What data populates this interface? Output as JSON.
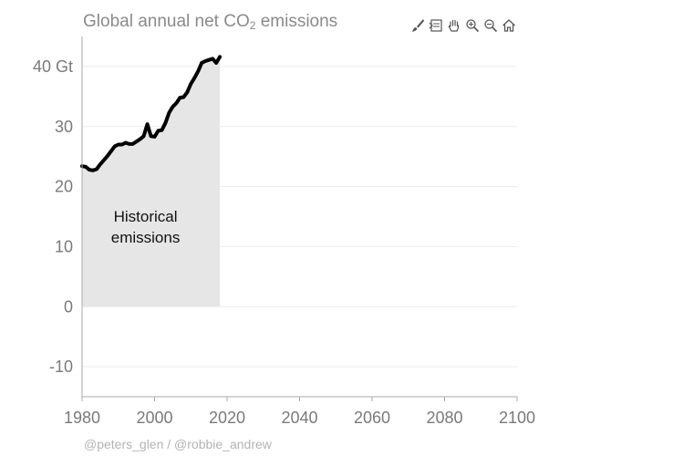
{
  "title": {
    "main": "Global annual net CO",
    "subscript": "2",
    "suffix": " emissions"
  },
  "toolbar": [
    {
      "name": "brush-icon",
      "label": "brush"
    },
    {
      "name": "select-icon",
      "label": "select"
    },
    {
      "name": "pan-icon",
      "label": "pan"
    },
    {
      "name": "zoom-in-icon",
      "label": "zoom in"
    },
    {
      "name": "zoom-out-icon",
      "label": "zoom out"
    },
    {
      "name": "home-icon",
      "label": "home"
    }
  ],
  "credit": "@peters_glen / @robbie_andrew",
  "colors": {
    "line": "#000000",
    "area": "#e6e6e6",
    "grid": "#ececec",
    "text": "#7a7a7a"
  },
  "chart_data": {
    "type": "area",
    "title": "Global annual net CO2 emissions",
    "xlim": [
      1980,
      2100
    ],
    "ylim": [
      -15,
      45
    ],
    "x_ticks": [
      "1980",
      "2000",
      "2020",
      "2040",
      "2060",
      "2080",
      "2100"
    ],
    "y_ticks": [
      {
        "value": 40,
        "label": "40 Gt"
      },
      {
        "value": 30,
        "label": "30"
      },
      {
        "value": 20,
        "label": "20"
      },
      {
        "value": 10,
        "label": "10"
      },
      {
        "value": 0,
        "label": "0"
      },
      {
        "value": -10,
        "label": "-10"
      }
    ],
    "grid": true,
    "annotation": {
      "lines": [
        "Historical",
        "emissions"
      ],
      "x": 1997.5,
      "y": 14.2
    },
    "series": [
      {
        "x": [
          1980,
          1981,
          1982,
          1983,
          1984,
          1985,
          1986,
          1987,
          1988,
          1989,
          1990,
          1991,
          1992,
          1993,
          1994,
          1995,
          1996,
          1997,
          1998,
          1999,
          2000,
          2001,
          2002,
          2003,
          2004,
          2005,
          2006,
          2007,
          2008,
          2009,
          2010,
          2011,
          2012,
          2013,
          2014,
          2015,
          2016,
          2017,
          2018
        ],
        "y": [
          23.4,
          23.3,
          22.8,
          22.7,
          22.9,
          23.7,
          24.4,
          25.1,
          25.9,
          26.7,
          27.0,
          27.0,
          27.3,
          27.1,
          27.1,
          27.5,
          27.9,
          28.4,
          30.4,
          28.4,
          28.3,
          29.3,
          29.4,
          30.6,
          32.3,
          33.3,
          33.9,
          34.8,
          34.9,
          35.7,
          37.1,
          38.1,
          39.2,
          40.6,
          40.9,
          41.1,
          41.3,
          40.6,
          41.6
        ]
      }
    ]
  }
}
